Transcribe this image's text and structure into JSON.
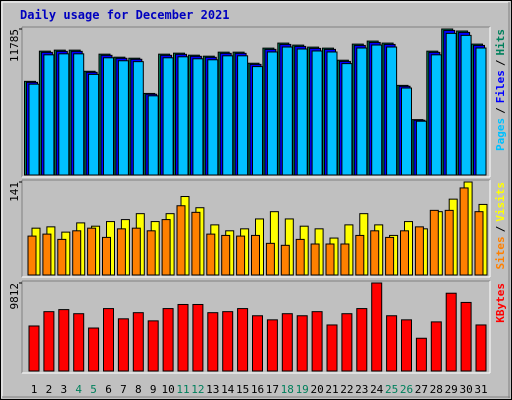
{
  "title": "Daily usage for December 2021",
  "legend_separator": "/",
  "chart_data": [
    {
      "type": "bar",
      "ylim": [
        0,
        11785
      ],
      "yticks": [
        11785
      ],
      "series": [
        {
          "name": "Hits",
          "color": "#00805c",
          "values": [
            7559,
            9997,
            10079,
            10079,
            8372,
            9754,
            9510,
            9428,
            6584,
            9754,
            9835,
            9672,
            9591,
            9916,
            9916,
            9022,
            10241,
            10648,
            10485,
            10323,
            10241,
            9266,
            10566,
            10810,
            10648,
            7234,
            4470,
            9997,
            11785,
            11623,
            10566
          ]
        },
        {
          "name": "Files",
          "color": "#0000ff",
          "values": [
            7480,
            9900,
            9980,
            9980,
            8290,
            9660,
            9420,
            9340,
            6520,
            9660,
            9740,
            9580,
            9500,
            9820,
            9820,
            8930,
            10140,
            10540,
            10380,
            10220,
            10140,
            9170,
            10460,
            10700,
            10540,
            7160,
            4420,
            9900,
            11670,
            11510,
            10460
          ]
        },
        {
          "name": "Pages",
          "color": "#00c0ff",
          "values": [
            7330,
            9700,
            9780,
            9780,
            8120,
            9460,
            9220,
            9150,
            6390,
            9460,
            9540,
            9380,
            9300,
            9620,
            9620,
            8750,
            9930,
            10330,
            10170,
            10010,
            9930,
            8990,
            10250,
            10490,
            10330,
            7020,
            4340,
            9700,
            11430,
            11270,
            10250
          ]
        }
      ]
    },
    {
      "type": "bar",
      "ylim": [
        0,
        141
      ],
      "yticks": [
        141
      ],
      "series": [
        {
          "name": "Visits",
          "color": "#ffff00",
          "values": [
            71,
            73,
            65,
            79,
            74,
            81,
            84,
            93,
            81,
            93,
            119,
            102,
            76,
            67,
            70,
            85,
            96,
            85,
            74,
            70,
            56,
            76,
            93,
            76,
            60,
            81,
            70,
            96,
            115,
            141,
            107
          ]
        },
        {
          "name": "Sites",
          "color": "#ff8000",
          "values": [
            59,
            62,
            54,
            67,
            71,
            57,
            70,
            71,
            67,
            84,
            105,
            95,
            62,
            60,
            59,
            60,
            48,
            45,
            54,
            47,
            47,
            47,
            60,
            67,
            57,
            67,
            73,
            98,
            98,
            132,
            96
          ]
        }
      ]
    },
    {
      "type": "bar",
      "ylim": [
        0,
        9812
      ],
      "yticks": [
        9812
      ],
      "series": [
        {
          "name": "KBytes",
          "color": "#ff0000",
          "values": [
            5020,
            6618,
            6846,
            6390,
            4792,
            6960,
            5819,
            6504,
            5591,
            6960,
            7417,
            7417,
            6504,
            6618,
            6960,
            6161,
            5705,
            6390,
            6161,
            6618,
            5135,
            6390,
            6960,
            9812,
            6161,
            5705,
            3651,
            5477,
            8672,
            7645,
            5135
          ]
        }
      ],
      "categories": [
        "1",
        "2",
        "3",
        "4",
        "5",
        "6",
        "7",
        "8",
        "9",
        "10",
        "11",
        "12",
        "13",
        "14",
        "15",
        "16",
        "17",
        "18",
        "19",
        "20",
        "21",
        "22",
        "23",
        "24",
        "25",
        "26",
        "27",
        "28",
        "29",
        "30",
        "31"
      ],
      "category_colors": [
        "#000000",
        "#000000",
        "#000000",
        "#00805c",
        "#00805c",
        "#000000",
        "#000000",
        "#000000",
        "#000000",
        "#000000",
        "#00805c",
        "#00805c",
        "#000000",
        "#000000",
        "#000000",
        "#000000",
        "#000000",
        "#00805c",
        "#00805c",
        "#000000",
        "#000000",
        "#000000",
        "#000000",
        "#000000",
        "#00805c",
        "#00805c",
        "#000000",
        "#000000",
        "#000000",
        "#000000",
        "#000000"
      ]
    }
  ]
}
